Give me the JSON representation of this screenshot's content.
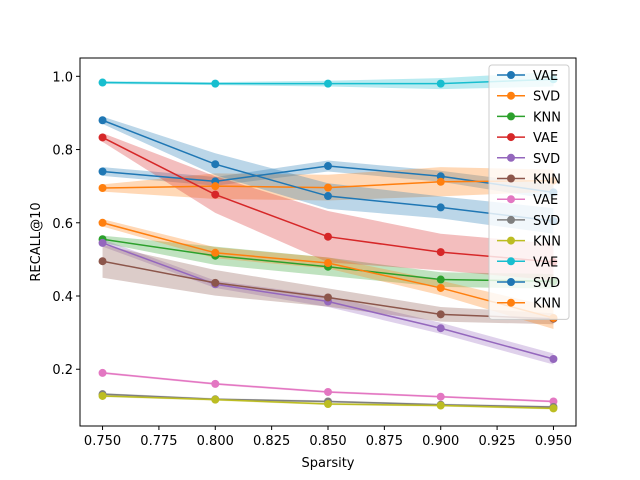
{
  "chart_data": {
    "type": "line",
    "xlabel": "Sparsity",
    "ylabel": "RECALL@10",
    "xlim": [
      0.74,
      0.96
    ],
    "ylim": [
      0.045,
      1.05
    ],
    "x_ticks": [
      "0.750",
      "0.775",
      "0.800",
      "0.825",
      "0.850",
      "0.875",
      "0.900",
      "0.925",
      "0.950"
    ],
    "y_ticks": [
      "0.2",
      "0.4",
      "0.6",
      "0.8",
      "1.0"
    ],
    "legend_position": "top-right",
    "grid": false,
    "x": [
      0.75,
      0.8,
      0.85,
      0.9,
      0.95
    ],
    "series": [
      {
        "name": "VAE",
        "color": "#1f77b4",
        "values": [
          0.74,
          0.713,
          0.755,
          0.727,
          0.683
        ],
        "band": [
          0.012,
          0.012,
          0.015,
          0.015,
          0.02
        ]
      },
      {
        "name": "SVD",
        "color": "#ff7f0e",
        "values": [
          0.695,
          0.7,
          0.696,
          0.712,
          0.715
        ],
        "band": [
          0.01,
          0.035,
          0.035,
          0.04,
          0.03
        ]
      },
      {
        "name": "KNN",
        "color": "#2ca02c",
        "values": [
          0.555,
          0.51,
          0.48,
          0.445,
          0.44
        ],
        "band": [
          0.01,
          0.025,
          0.025,
          0.02,
          0.02
        ]
      },
      {
        "name": "VAE",
        "color": "#d62728",
        "values": [
          0.833,
          0.677,
          0.562,
          0.52,
          0.493
        ],
        "band": [
          0.012,
          0.05,
          0.07,
          0.05,
          0.05
        ]
      },
      {
        "name": "SVD",
        "color": "#9467bd",
        "values": [
          0.545,
          0.432,
          0.385,
          0.312,
          0.228
        ],
        "band": [
          0.01,
          0.01,
          0.015,
          0.015,
          0.015
        ]
      },
      {
        "name": "KNN",
        "color": "#8c564b",
        "values": [
          0.495,
          0.436,
          0.396,
          0.35,
          0.338
        ],
        "band": [
          0.045,
          0.035,
          0.025,
          0.02,
          0.015
        ]
      },
      {
        "name": "VAE",
        "color": "#e377c2",
        "values": [
          0.19,
          0.16,
          0.138,
          0.125,
          0.112
        ],
        "band": [
          0.003,
          0.003,
          0.003,
          0.003,
          0.003
        ]
      },
      {
        "name": "SVD",
        "color": "#7f7f7f",
        "values": [
          0.132,
          0.118,
          0.112,
          0.103,
          0.097
        ],
        "band": [
          0.003,
          0.003,
          0.003,
          0.003,
          0.003
        ]
      },
      {
        "name": "KNN",
        "color": "#bcbd22",
        "values": [
          0.127,
          0.117,
          0.105,
          0.101,
          0.093
        ],
        "band": [
          0.003,
          0.003,
          0.003,
          0.003,
          0.003
        ]
      },
      {
        "name": "VAE",
        "color": "#17becf",
        "values": [
          0.983,
          0.98,
          0.98,
          0.98,
          0.992
        ],
        "band": [
          0.004,
          0.004,
          0.008,
          0.015,
          0.02
        ]
      },
      {
        "name": "SVD",
        "color": "#1f77b4",
        "values": [
          0.88,
          0.76,
          0.673,
          0.642,
          0.605
        ],
        "band": [
          0.01,
          0.03,
          0.035,
          0.03,
          0.035
        ]
      },
      {
        "name": "KNN",
        "color": "#ff7f0e",
        "values": [
          0.6,
          0.518,
          0.49,
          0.422,
          0.34
        ],
        "band": [
          0.01,
          0.015,
          0.015,
          0.02,
          0.03
        ]
      }
    ]
  }
}
